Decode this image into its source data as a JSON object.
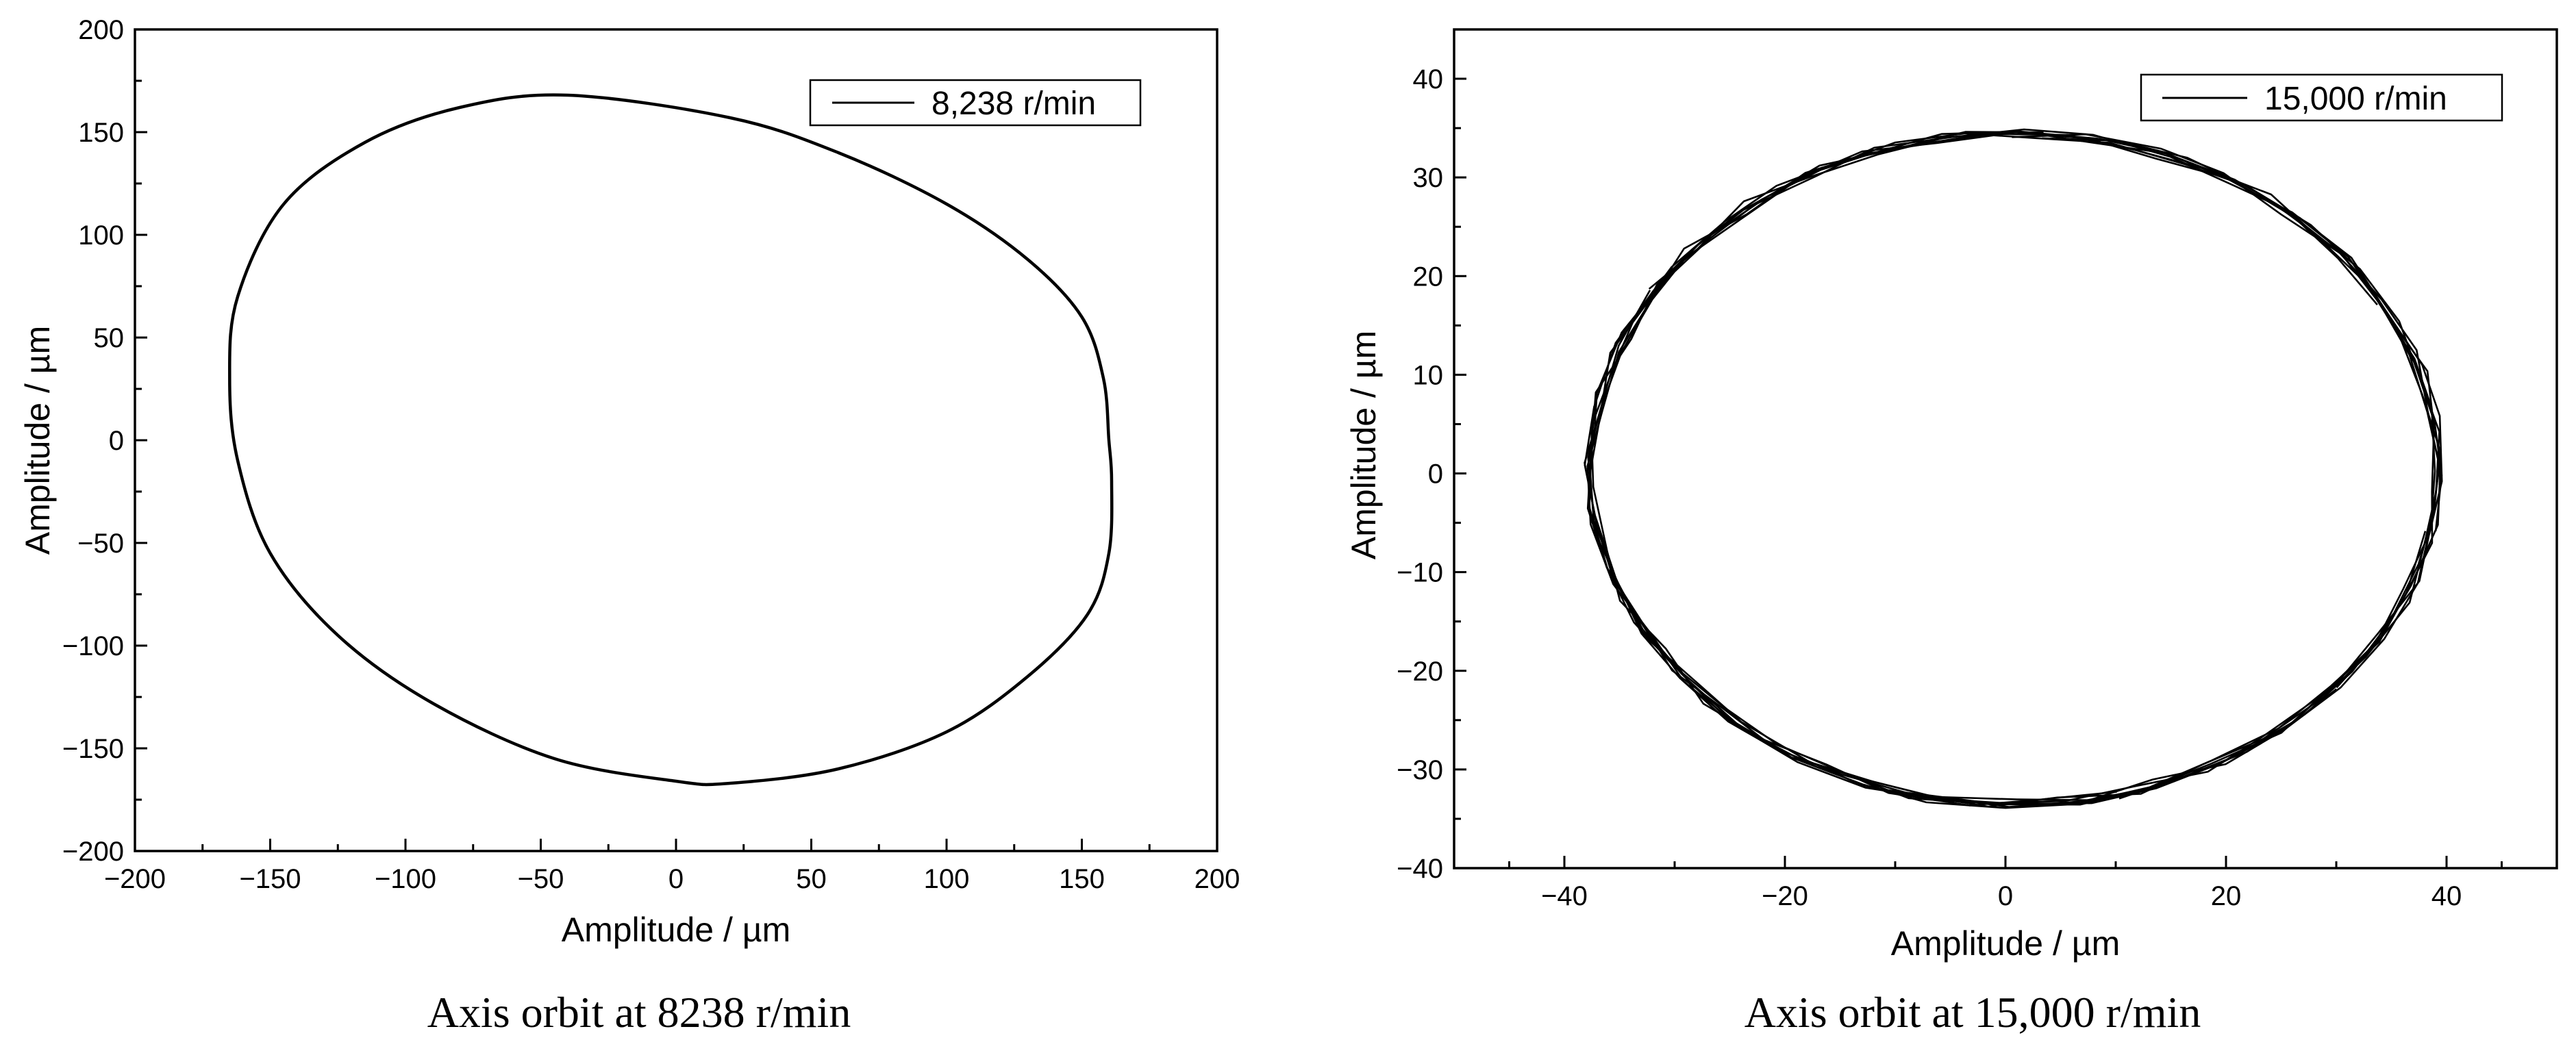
{
  "chart_data": [
    {
      "type": "line",
      "xlabel": "Amplitude / µm",
      "ylabel": "Amplitude / µm",
      "xlim": [
        -200,
        200
      ],
      "ylim": [
        -200,
        200
      ],
      "x_ticks": [
        -200,
        -150,
        -100,
        -50,
        0,
        50,
        100,
        150,
        200
      ],
      "y_ticks": [
        -200,
        -150,
        -100,
        -50,
        0,
        50,
        100,
        150,
        200
      ],
      "x_tick_labels": [
        "−200",
        "−150",
        "−100",
        "−50",
        "0",
        "50",
        "100",
        "150",
        "200"
      ],
      "y_tick_labels": [
        "−200",
        "−150",
        "−100",
        "−50",
        "0",
        "50",
        "100",
        "150",
        "200"
      ],
      "grid": false,
      "legend_position": "top-right",
      "caption": "Axis orbit at 8238 r/min",
      "series": [
        {
          "name": "8,238 r/min",
          "color": "#000000",
          "closed": true,
          "points": [
            [
              160,
              0
            ],
            [
              158,
              30
            ],
            [
              150,
              60
            ],
            [
              130,
              88
            ],
            [
              100,
              115
            ],
            [
              60,
              140
            ],
            [
              20,
              157
            ],
            [
              -40,
              168
            ],
            [
              -80,
              162
            ],
            [
              -115,
              145
            ],
            [
              -145,
              115
            ],
            [
              -162,
              70
            ],
            [
              -165,
              30
            ],
            [
              -162,
              -10
            ],
            [
              -150,
              -55
            ],
            [
              -125,
              -95
            ],
            [
              -90,
              -128
            ],
            [
              -45,
              -155
            ],
            [
              0,
              -166
            ],
            [
              20,
              -167
            ],
            [
              60,
              -160
            ],
            [
              100,
              -142
            ],
            [
              130,
              -115
            ],
            [
              152,
              -85
            ],
            [
              160,
              -55
            ],
            [
              161,
              -20
            ]
          ]
        }
      ]
    },
    {
      "type": "line",
      "xlabel": "Amplitude / µm",
      "ylabel": "Amplitude / µm",
      "xlim": [
        -50,
        50
      ],
      "ylim": [
        -40,
        45
      ],
      "x_ticks": [
        -40,
        -20,
        0,
        20,
        40
      ],
      "y_ticks": [
        -40,
        -30,
        -20,
        -10,
        0,
        10,
        20,
        30,
        40
      ],
      "x_tick_labels": [
        "−40",
        "−20",
        "0",
        "20",
        "40"
      ],
      "y_tick_labels": [
        "−40",
        "−30",
        "−20",
        "−10",
        "0",
        "10",
        "20",
        "30",
        "40"
      ],
      "grid": false,
      "legend_position": "top-right",
      "caption": "Axis orbit at 15,000 r/min",
      "series": [
        {
          "name": "15,000 r/min",
          "color": "#000000",
          "closed": true,
          "center": [
            0.8,
            0.5
          ],
          "radius_x": 38.5,
          "radius_y": 34,
          "repeats": 8
        }
      ]
    }
  ]
}
